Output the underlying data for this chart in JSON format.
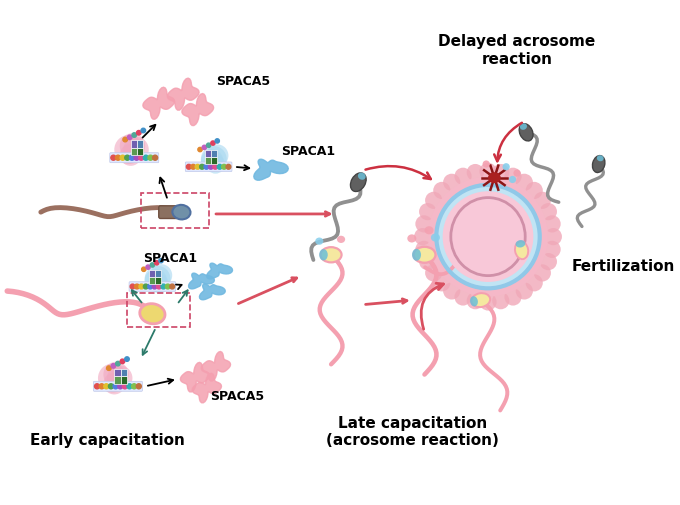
{
  "bg_color": "#ffffff",
  "title_delayed": "Delayed acrosome\nreaction",
  "title_fertilization": "Fertilization",
  "title_early": "Early capacitation",
  "title_late": "Late capacitation\n(acrosome reaction)",
  "label_spaca5_top": "SPACA5",
  "label_spaca1_top": "SPACA1",
  "label_spaca1_bot": "SPACA1",
  "label_spaca5_bot": "SPACA5",
  "color_pink": "#F4A0B0",
  "color_pink_light": "#F9C8D4",
  "color_pink_pale": "#FDE8EE",
  "color_blue_light": "#87CEEB",
  "color_cyan": "#6BBFD8",
  "color_cyan2": "#88D4E8",
  "color_dark_red": "#8B1515",
  "color_arrow_main": "#D95060",
  "color_gray": "#888888",
  "color_gray_dark": "#555555",
  "color_yellow_pale": "#F5E8A0",
  "color_yellow": "#EDD870",
  "color_green": "#5A9A50",
  "color_green2": "#3D7A35",
  "color_purple": "#A070C0",
  "color_blue": "#4090C8",
  "color_orange": "#E08830",
  "color_brown": "#8B6A52",
  "color_teal": "#2C7A6A",
  "color_ribosome_pink": "#E8A0B8",
  "color_ribosome_blue": "#B8D4E8"
}
